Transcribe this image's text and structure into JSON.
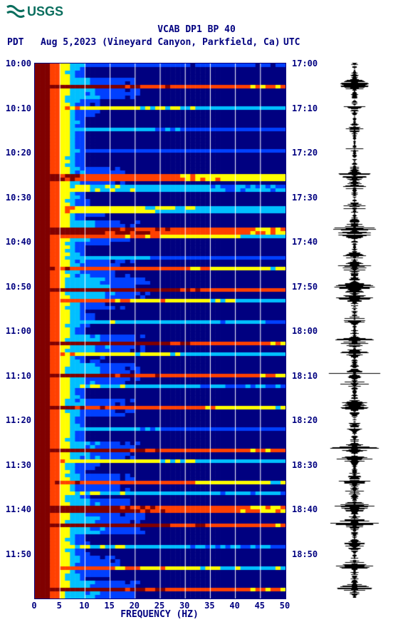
{
  "logo": {
    "text": "USGS",
    "color": "#0a6e5e"
  },
  "title": "VCAB DP1 BP 40",
  "subtitle_left_tz": "PDT",
  "subtitle_date": "Aug 5,2023",
  "subtitle_location": "(Vineyard Canyon, Parkfield, Ca)",
  "subtitle_right_tz": "UTC",
  "spectrogram": {
    "type": "spectrogram",
    "xlim": [
      0,
      50
    ],
    "ylim_left": [
      "10:00",
      "10:10",
      "10:20",
      "10:30",
      "10:40",
      "10:50",
      "11:00",
      "11:10",
      "11:20",
      "11:30",
      "11:40",
      "11:50"
    ],
    "ylim_right": [
      "17:00",
      "17:10",
      "17:20",
      "17:30",
      "17:40",
      "17:50",
      "18:00",
      "18:10",
      "18:20",
      "18:30",
      "18:40",
      "18:50"
    ],
    "xtick_step": 5,
    "xticks": [
      0,
      5,
      10,
      15,
      20,
      25,
      30,
      35,
      40,
      45,
      50
    ],
    "xlabel": "FREQUENCY (HZ)",
    "grid_color": "#ffffff",
    "border_color": "#000080",
    "text_color": "#000080",
    "label_fontsize": 12,
    "colors": {
      "low": "#000080",
      "mid_low": "#0040ff",
      "mid": "#00c0ff",
      "mid_high": "#ffff00",
      "high": "#ff4000",
      "max": "#800000"
    },
    "rows": 150,
    "cols": 50,
    "seed_events": [
      {
        "t": 0.0,
        "intensity": 0.3
      },
      {
        "t": 0.04,
        "intensity": 0.9
      },
      {
        "t": 0.08,
        "intensity": 0.6
      },
      {
        "t": 0.12,
        "intensity": 0.4
      },
      {
        "t": 0.16,
        "intensity": 0.3
      },
      {
        "t": 0.21,
        "intensity": 0.8
      },
      {
        "t": 0.23,
        "intensity": 0.5
      },
      {
        "t": 0.27,
        "intensity": 0.6
      },
      {
        "t": 0.31,
        "intensity": 0.9
      },
      {
        "t": 0.32,
        "intensity": 0.7
      },
      {
        "t": 0.36,
        "intensity": 0.4
      },
      {
        "t": 0.38,
        "intensity": 0.8
      },
      {
        "t": 0.42,
        "intensity": 1.0
      },
      {
        "t": 0.44,
        "intensity": 0.7
      },
      {
        "t": 0.48,
        "intensity": 0.5
      },
      {
        "t": 0.52,
        "intensity": 0.95
      },
      {
        "t": 0.54,
        "intensity": 0.6
      },
      {
        "t": 0.58,
        "intensity": 0.9
      },
      {
        "t": 0.6,
        "intensity": 0.5
      },
      {
        "t": 0.64,
        "intensity": 0.8
      },
      {
        "t": 0.68,
        "intensity": 0.4
      },
      {
        "t": 0.72,
        "intensity": 0.9
      },
      {
        "t": 0.74,
        "intensity": 0.6
      },
      {
        "t": 0.78,
        "intensity": 0.8
      },
      {
        "t": 0.8,
        "intensity": 0.5
      },
      {
        "t": 0.83,
        "intensity": 0.9
      },
      {
        "t": 0.86,
        "intensity": 0.95
      },
      {
        "t": 0.9,
        "intensity": 0.5
      },
      {
        "t": 0.94,
        "intensity": 0.7
      },
      {
        "t": 0.98,
        "intensity": 0.9
      }
    ]
  },
  "waveform": {
    "color": "#000000",
    "background": "#ffffff",
    "samples": 750
  }
}
